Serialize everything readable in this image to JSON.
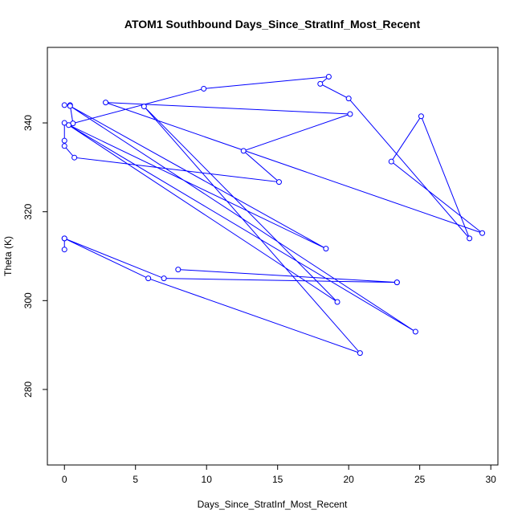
{
  "chart_data": {
    "type": "line",
    "title": "ATOM1 Southbound Days_Since_StratInf_Most_Recent",
    "xlabel": "Days_Since_StratInf_Most_Recent",
    "ylabel": "Theta (K)",
    "xlim": [
      -1.2,
      30.5
    ],
    "ylim": [
      263,
      357
    ],
    "xticks": [
      0,
      5,
      10,
      15,
      20,
      25,
      30
    ],
    "yticks": [
      280,
      300,
      320,
      340
    ],
    "grid": false,
    "series": [
      {
        "color": "#0000ff",
        "points": [
          [
            0.0,
            344.0
          ],
          [
            0.4,
            344.0
          ],
          [
            0.6,
            339.9
          ],
          [
            9.8,
            347.7
          ],
          [
            18.6,
            350.4
          ],
          [
            18.0,
            348.8
          ],
          [
            20.0,
            345.5
          ],
          [
            28.5,
            314.0
          ],
          [
            25.1,
            341.5
          ],
          [
            23.0,
            331.3
          ],
          [
            29.4,
            315.2
          ],
          [
            2.9,
            344.6
          ],
          [
            20.1,
            342.0
          ],
          [
            12.6,
            333.7
          ],
          [
            15.1,
            326.7
          ],
          [
            0.7,
            332.2
          ],
          [
            0.0,
            334.8
          ],
          [
            0.0,
            336.0
          ],
          [
            0.0,
            340.0
          ],
          [
            18.4,
            311.7
          ],
          [
            0.4,
            343.8
          ],
          [
            24.7,
            293.0
          ],
          [
            0.3,
            339.5
          ],
          [
            19.2,
            299.7
          ],
          [
            5.6,
            343.7
          ],
          [
            20.8,
            288.2
          ],
          [
            5.9,
            305.0
          ],
          [
            0.0,
            314.0
          ],
          [
            0.0,
            311.5
          ],
          [
            0.0,
            314.0
          ],
          [
            7.0,
            305.0
          ],
          [
            23.4,
            304.1
          ],
          [
            8.0,
            307.0
          ],
          [
            23.4,
            304.1
          ]
        ]
      }
    ]
  }
}
